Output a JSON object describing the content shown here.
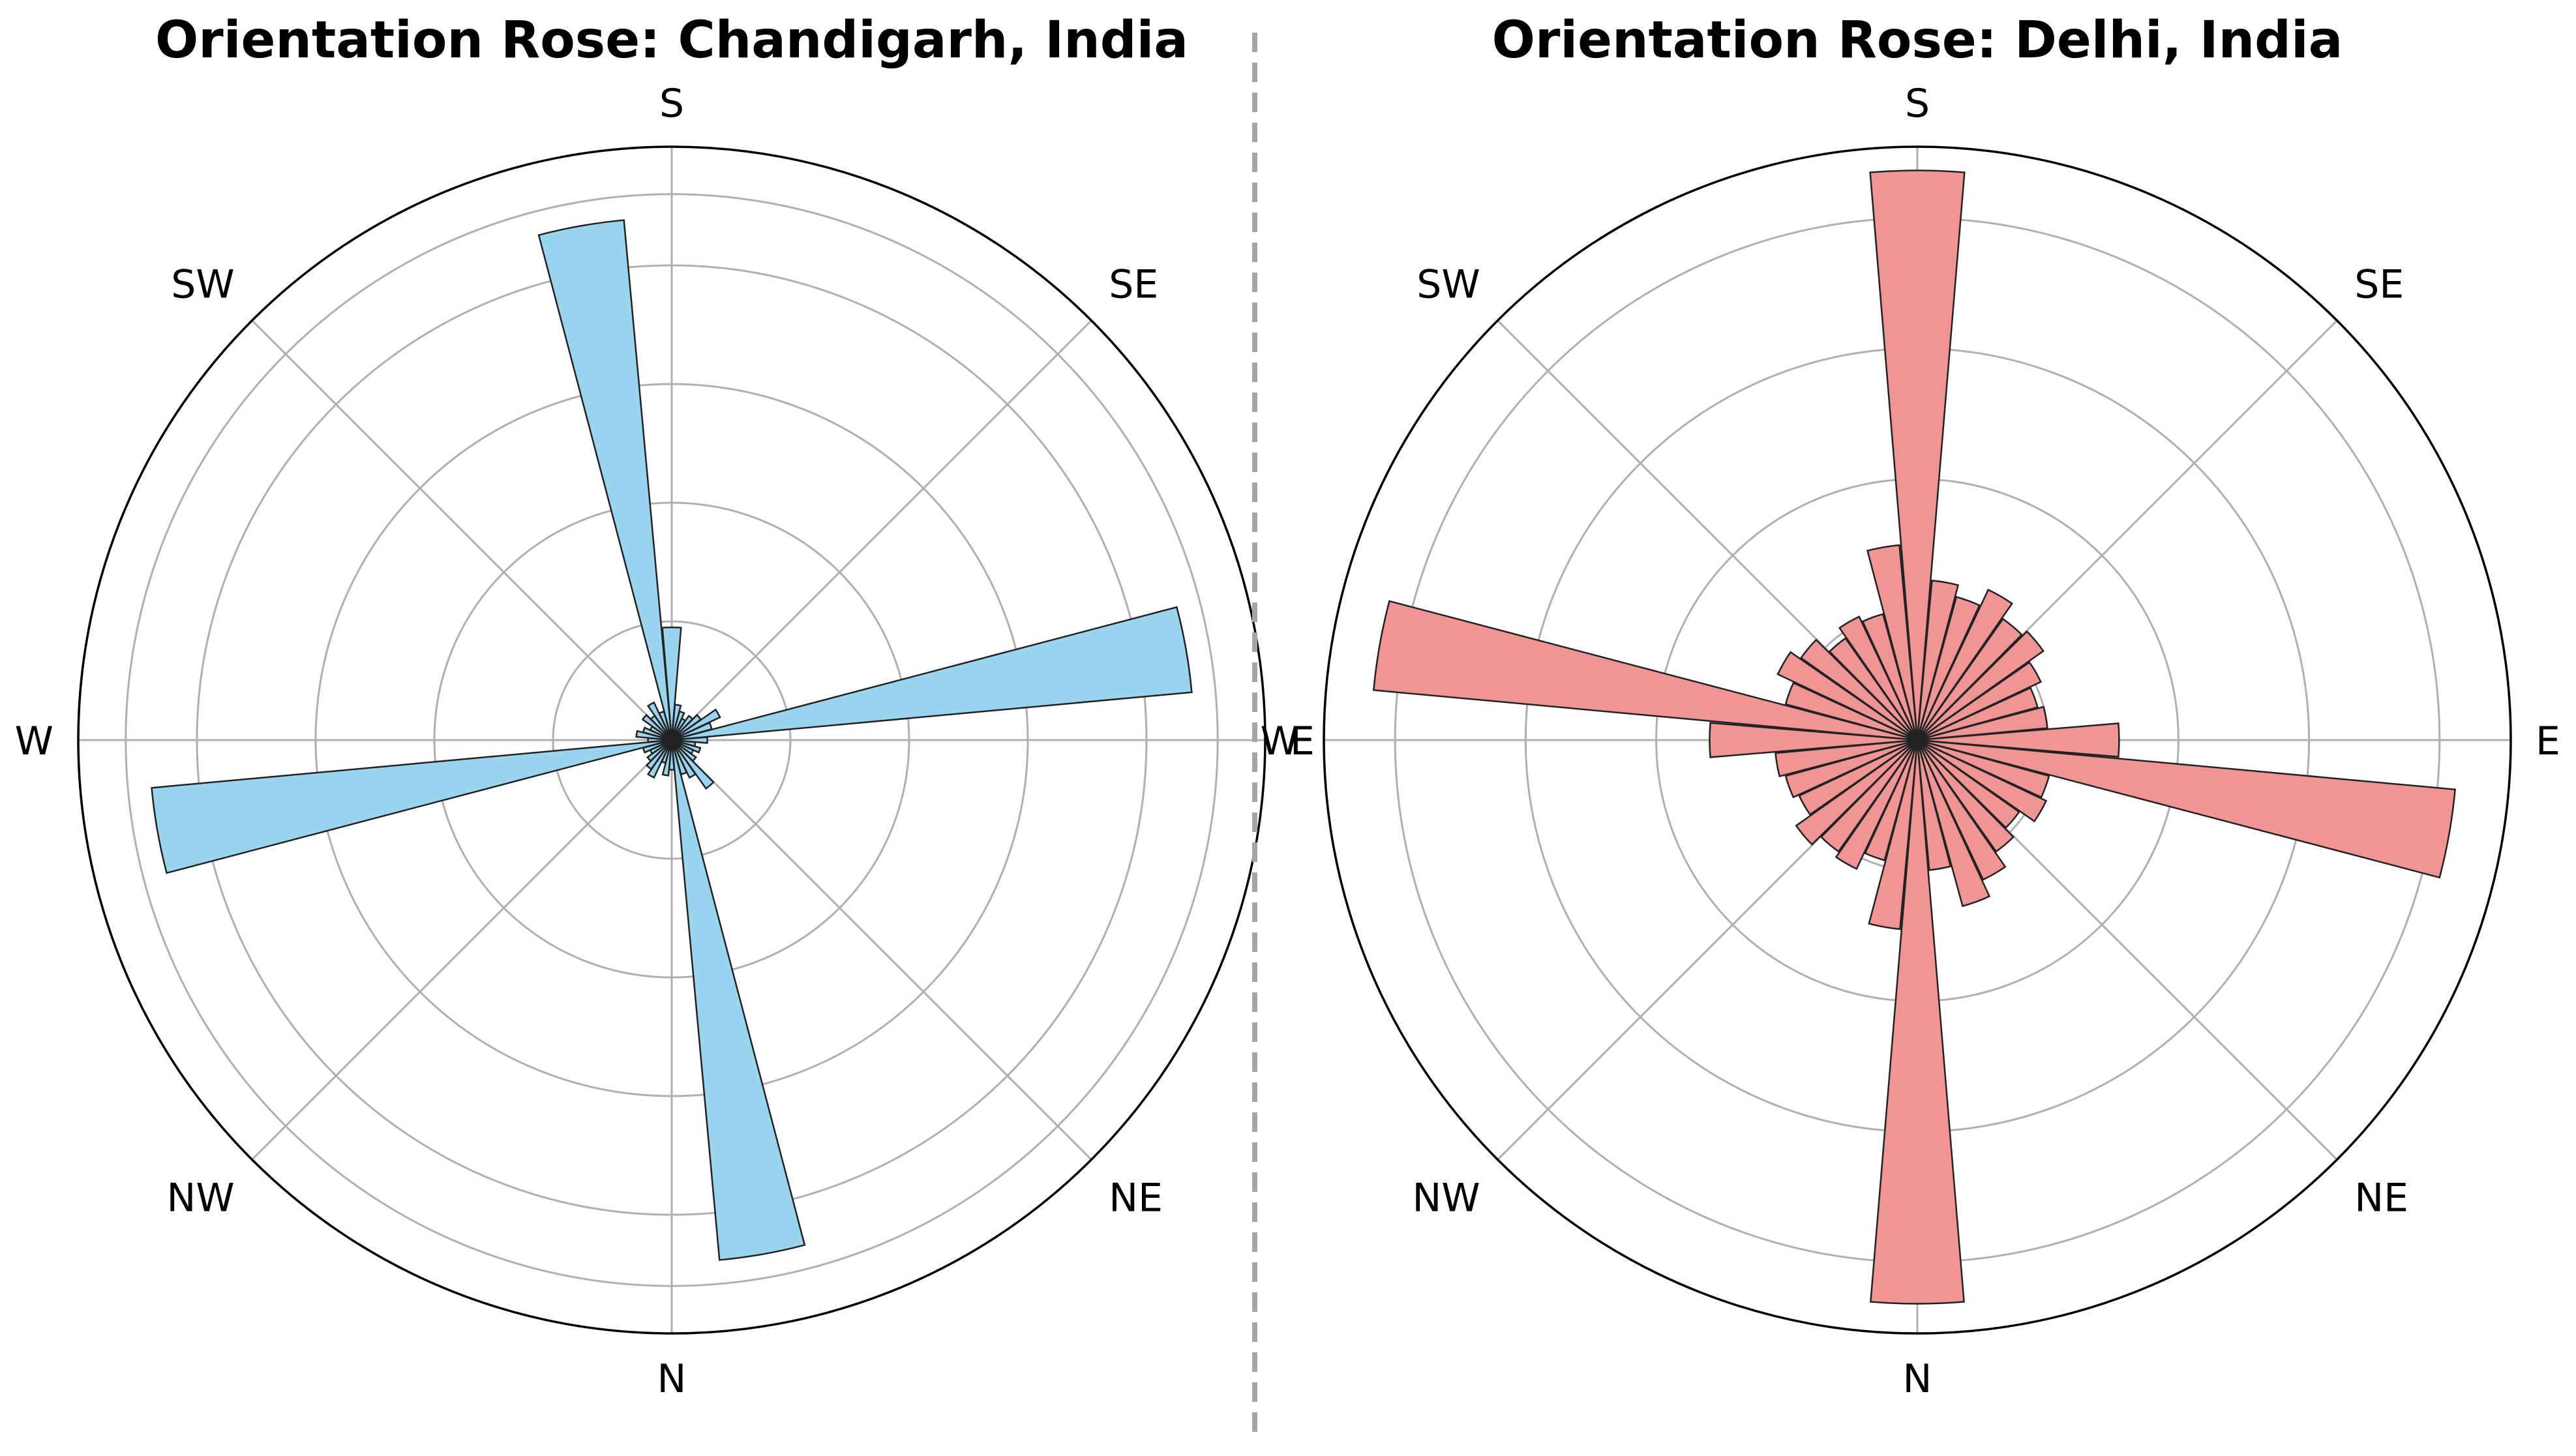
{
  "chart_data": [
    {
      "type": "polar-bar",
      "title": "Orientation Rose: Chandigarh, India",
      "direction_labels": [
        "S",
        "SE",
        "E",
        "NE",
        "N",
        "NW",
        "W",
        "SW"
      ],
      "bar_color": "#9ad4ee",
      "r_max": 1.0,
      "r_rings": [
        0.2,
        0.4,
        0.6,
        0.8,
        0.92
      ],
      "bins": 36,
      "values": [
        0.19,
        0.06,
        0.05,
        0.04,
        0.05,
        0.06,
        0.09,
        0.07,
        0.88,
        0.06,
        0.04,
        0.05,
        0.04,
        0.05,
        0.1,
        0.07,
        0.06,
        0.88,
        0.05,
        0.06,
        0.04,
        0.07,
        0.06,
        0.05,
        0.04,
        0.05,
        0.88,
        0.04,
        0.06,
        0.05,
        0.04,
        0.06,
        0.05,
        0.07,
        0.05,
        0.88
      ]
    },
    {
      "type": "polar-bar",
      "title": "Orientation Rose: Delhi, India",
      "direction_labels": [
        "S",
        "SE",
        "E",
        "NE",
        "N",
        "NW",
        "W",
        "SW"
      ],
      "bar_color": "#f09595",
      "r_max": 1.0,
      "r_rings": [
        0.22,
        0.44,
        0.66,
        0.88
      ],
      "bins": 36,
      "values": [
        0.96,
        0.27,
        0.25,
        0.28,
        0.25,
        0.26,
        0.23,
        0.21,
        0.22,
        0.34,
        0.91,
        0.23,
        0.24,
        0.21,
        0.23,
        0.26,
        0.29,
        0.22,
        0.95,
        0.32,
        0.21,
        0.24,
        0.23,
        0.25,
        0.22,
        0.23,
        0.24,
        0.35,
        0.92,
        0.23,
        0.26,
        0.24,
        0.21,
        0.23,
        0.22,
        0.33
      ]
    }
  ]
}
